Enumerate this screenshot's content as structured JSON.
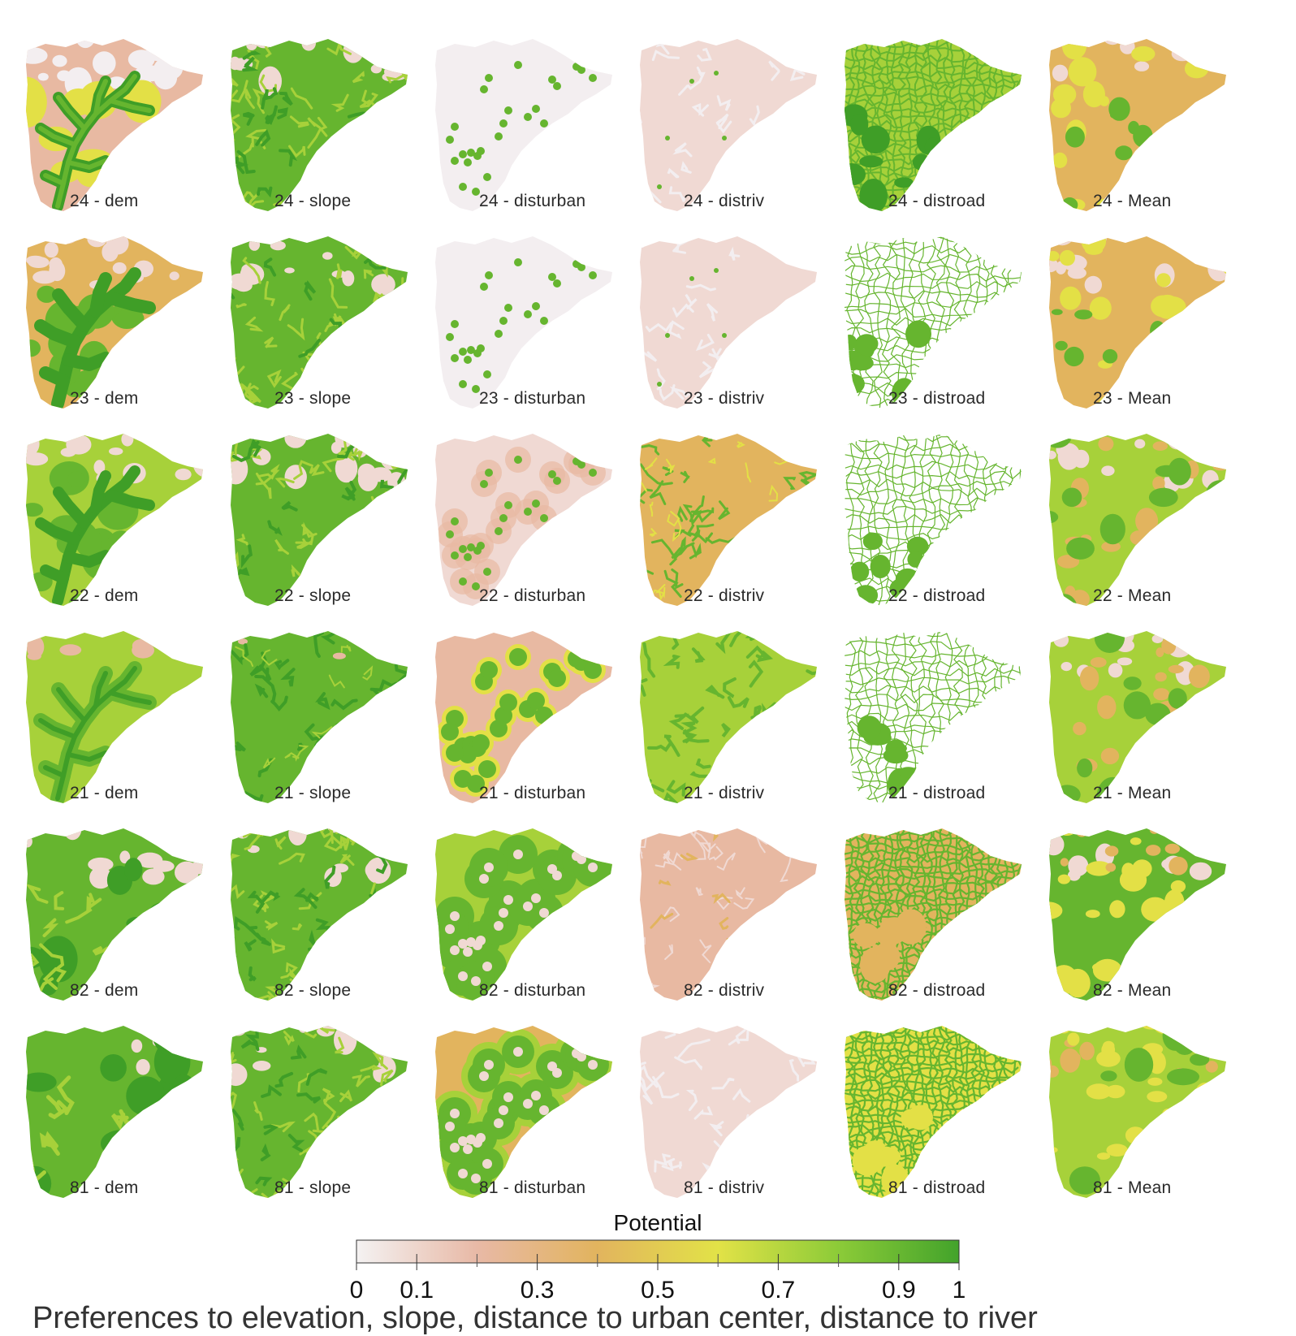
{
  "rows": [
    "24",
    "23",
    "22",
    "21",
    "82",
    "81"
  ],
  "columns": [
    "dem",
    "slope",
    "disturban",
    "distriv",
    "distroad",
    "Mean"
  ],
  "label_separator": " - ",
  "scale": {
    "title": "Potential",
    "ticks": [
      "0",
      "0.1",
      "0.3",
      "0.5",
      "0.7",
      "0.9",
      "1"
    ],
    "tick_values": [
      0,
      0.1,
      0.3,
      0.5,
      0.7,
      0.9,
      1
    ],
    "minor_ticks": [
      0.2,
      0.4,
      0.6,
      0.8
    ],
    "colors": [
      "#f4f2f2",
      "#e8b9a6",
      "#e2b45e",
      "#e2e247",
      "#8ccb38",
      "#43a32b"
    ]
  },
  "map_palette": {
    "white": "#f3eef0",
    "pink": "#f0d9d3",
    "salmon": "#e8b9a2",
    "tan": "#e2b45e",
    "yellow": "#e3e046",
    "lightgreen": "#a7d13a",
    "green": "#66b52f",
    "darkgreen": "#3f9e27"
  },
  "maps": [
    [
      "salmon-yellow-dem",
      "green-slope",
      "white-dots",
      "pink-flat",
      "green-net",
      "tan-mean"
    ],
    [
      "tan-dem",
      "green-slope",
      "white-dots",
      "pink-flat",
      "green-net-thin",
      "tan-mean"
    ],
    [
      "lightgreen-dem",
      "green-slope",
      "pink-halo",
      "tan-riv",
      "green-net-thin",
      "green-mean"
    ],
    [
      "lightgreen-dem2",
      "green-slope2",
      "salmon-halo",
      "lightgreen-riv",
      "green-net-thin",
      "green-mean"
    ],
    [
      "green-dem",
      "green-slope",
      "green-halo",
      "salmon-riv",
      "tan-net",
      "green-mean2"
    ],
    [
      "darkgreen-dem",
      "green-slope",
      "green-halo2",
      "white-riv",
      "yellow-net",
      "lightgreen-mean"
    ]
  ],
  "caption": "Preferences to elevation, slope, distance to urban center, distance to river"
}
